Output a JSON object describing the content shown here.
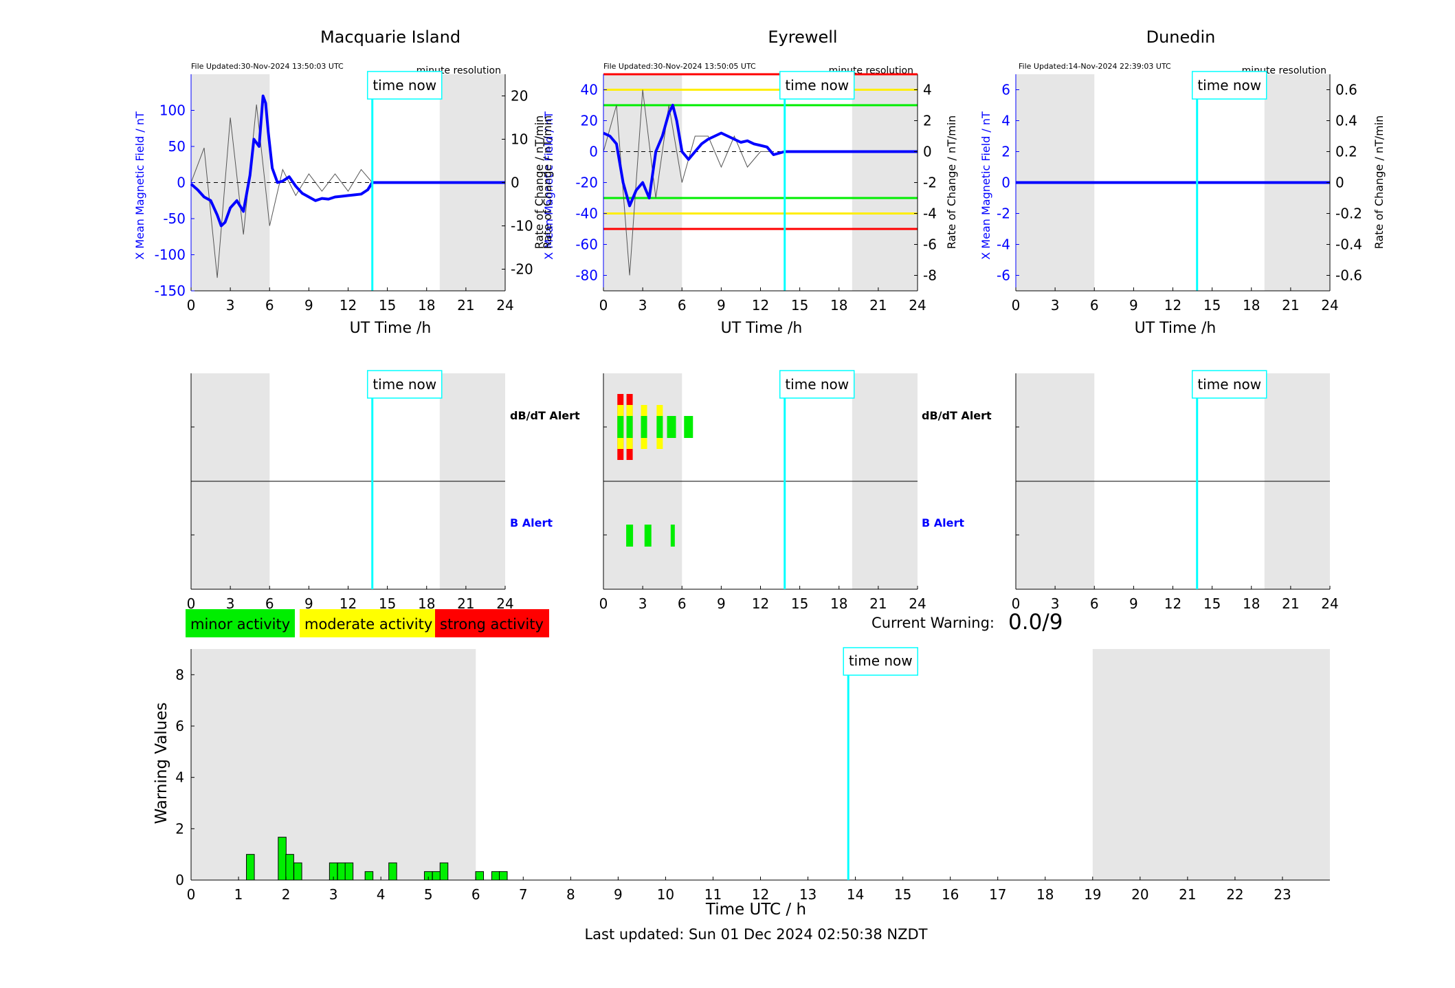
{
  "stations": [
    {
      "name": "Macquarie Island",
      "file_updated": "File Updated:30-Nov-2024 13:50:03 UTC",
      "resolution": "minute resolution",
      "ylabel_left": "X Mean Magnetic Field / nT",
      "ylabel_right": "Rate of Change / nT/min",
      "left_ticks": [
        -150,
        -100,
        -50,
        0,
        50,
        100
      ],
      "right_ticks": [
        -20,
        -10,
        0,
        10,
        20
      ],
      "time_now_label": "time now",
      "xlabel": "UT Time /h"
    },
    {
      "name": "Eyrewell",
      "file_updated": "File Updated:30-Nov-2024 13:50:05 UTC",
      "resolution": "minute resolution",
      "ylabel_left": "X Mean Magnetic Field / nT",
      "ylabel_right": "Rate of Change / nT/min",
      "left_ticks": [
        -80,
        -60,
        -40,
        -20,
        0,
        20,
        40
      ],
      "right_ticks": [
        -8,
        -6,
        -4,
        -2,
        0,
        2,
        4
      ],
      "time_now_label": "time now",
      "xlabel": "UT Time /h"
    },
    {
      "name": "Dunedin",
      "file_updated": "File Updated:14-Nov-2024 22:39:03 UTC",
      "resolution": "minute resolution",
      "ylabel_left": "X Mean Magnetic Field / nT",
      "ylabel_right": "Rate of Change / nT/min",
      "left_ticks": [
        -6,
        -4,
        -2,
        0,
        2,
        4,
        6
      ],
      "right_ticks": [
        -0.6,
        -0.4,
        -0.2,
        0,
        0.2,
        0.4,
        0.6
      ],
      "time_now_label": "time now",
      "xlabel": "UT Time /h"
    }
  ],
  "alert_labels": {
    "dbdt": "dB/dT Alert",
    "b": "B Alert"
  },
  "legend": {
    "minor": "minor activity",
    "moderate": "moderate activity",
    "strong": "strong activity"
  },
  "current_warning": {
    "label": "Current Warning:",
    "value": "0.0/9"
  },
  "warning_chart": {
    "ylabel": "Warning Values",
    "xlabel": "Time UTC / h",
    "time_now_label": "time now"
  },
  "last_updated": "Last updated: Sun 01 Dec 2024 02:50:38 NZDT",
  "colors": {
    "minor": "#00ee00",
    "moderate": "#ffff00",
    "strong": "#ff0000",
    "mean_field": "#0000ff",
    "time_now": "#00ffff",
    "night_shade": "#e6e6e6",
    "rate_of_change": "#555555"
  },
  "chart_data": [
    {
      "type": "line",
      "title": "Macquarie Island",
      "xlabel": "UT Time /h",
      "ylabel": "X Mean Magnetic Field / nT",
      "y2label": "Rate of Change / nT/min",
      "xlim": [
        0,
        24
      ],
      "ylim": [
        -150,
        150
      ],
      "y2lim": [
        -25,
        25
      ],
      "xticks": [
        0,
        3,
        6,
        9,
        12,
        15,
        18,
        21,
        24
      ],
      "time_now": 13.85,
      "shaded_hours": [
        [
          0,
          6
        ],
        [
          19,
          24
        ]
      ],
      "series": [
        {
          "name": "X Mean Magnetic Field",
          "x": [
            0,
            0.5,
            1.0,
            1.5,
            2.0,
            2.3,
            2.6,
            3.0,
            3.5,
            4.0,
            4.5,
            4.8,
            5.2,
            5.5,
            5.7,
            5.9,
            6.2,
            6.6,
            7.0,
            7.5,
            8.0,
            8.5,
            9.0,
            9.5,
            10.0,
            10.5,
            11.0,
            11.5,
            12.0,
            12.5,
            13.0,
            13.5,
            13.85,
            24
          ],
          "y": [
            -2,
            -10,
            -20,
            -25,
            -45,
            -60,
            -55,
            -35,
            -25,
            -40,
            10,
            60,
            50,
            120,
            110,
            70,
            20,
            0,
            2,
            8,
            -5,
            -15,
            -20,
            -25,
            -22,
            -23,
            -20,
            -19,
            -18,
            -17,
            -16,
            -10,
            0,
            0
          ]
        },
        {
          "name": "Rate of Change",
          "x": [
            0,
            1,
            2,
            3,
            4,
            5,
            6,
            7,
            8,
            9,
            10,
            11,
            12,
            13,
            13.85
          ],
          "y": [
            0,
            8,
            -22,
            15,
            -12,
            18,
            -10,
            3,
            -3,
            2,
            -2,
            2,
            -2,
            3,
            0
          ]
        }
      ]
    },
    {
      "type": "line",
      "title": "Eyrewell",
      "xlabel": "UT Time /h",
      "ylabel": "X Mean Magnetic Field / nT",
      "y2label": "Rate of Change / nT/min",
      "xlim": [
        0,
        24
      ],
      "ylim": [
        -90,
        50
      ],
      "y2lim": [
        -9,
        5
      ],
      "xticks": [
        0,
        3,
        6,
        9,
        12,
        15,
        18,
        21,
        24
      ],
      "time_now": 13.85,
      "shaded_hours": [
        [
          0,
          6
        ],
        [
          19,
          24
        ]
      ],
      "thresholds": {
        "minor": [
          30,
          -30
        ],
        "moderate": [
          40,
          -40
        ],
        "strong": [
          50,
          -50
        ]
      },
      "series": [
        {
          "name": "X Mean Magnetic Field",
          "x": [
            0,
            0.5,
            1.0,
            1.5,
            2.0,
            2.5,
            3.0,
            3.5,
            4.0,
            4.5,
            5.0,
            5.3,
            5.6,
            6.0,
            6.5,
            7.0,
            7.5,
            8.0,
            8.5,
            9.0,
            9.5,
            10.0,
            10.5,
            11.0,
            11.5,
            12.0,
            12.5,
            13.0,
            13.85,
            24
          ],
          "y": [
            12,
            10,
            5,
            -20,
            -35,
            -25,
            -20,
            -30,
            0,
            10,
            25,
            30,
            20,
            0,
            -5,
            0,
            5,
            8,
            10,
            12,
            10,
            8,
            6,
            7,
            5,
            4,
            3,
            -2,
            0,
            0
          ]
        },
        {
          "name": "Rate of Change",
          "x": [
            0,
            1,
            2,
            3,
            4,
            5,
            6,
            7,
            8,
            9,
            10,
            11,
            12,
            13
          ],
          "y": [
            0,
            3,
            -8,
            4,
            -3,
            3,
            -2,
            1,
            1,
            -1,
            1,
            -1,
            0,
            0
          ]
        }
      ]
    },
    {
      "type": "line",
      "title": "Dunedin",
      "xlabel": "UT Time /h",
      "ylabel": "X Mean Magnetic Field / nT",
      "y2label": "Rate of Change / nT/min",
      "xlim": [
        0,
        24
      ],
      "ylim": [
        -7,
        7
      ],
      "y2lim": [
        -0.7,
        0.7
      ],
      "xticks": [
        0,
        3,
        6,
        9,
        12,
        15,
        18,
        21,
        24
      ],
      "time_now": 13.85,
      "shaded_hours": [
        [
          0,
          6
        ],
        [
          19,
          24
        ]
      ],
      "series": [
        {
          "name": "X Mean Magnetic Field",
          "x": [
            0,
            24
          ],
          "y": [
            0,
            0
          ]
        }
      ]
    },
    {
      "type": "bar",
      "title": "dB/dT Alert / B Alert",
      "xlim": [
        0,
        24
      ],
      "xticks": [
        0,
        3,
        6,
        9,
        12,
        15,
        18,
        21,
        24
      ],
      "panels": [
        "Macquarie Island",
        "Eyrewell",
        "Dunedin"
      ],
      "eyrewell_dbdt": [
        {
          "hour": 1.3,
          "level": "strong"
        },
        {
          "hour": 2.0,
          "level": "strong"
        },
        {
          "hour": 3.1,
          "level": "moderate"
        },
        {
          "hour": 4.3,
          "level": "moderate"
        },
        {
          "hour": 5.2,
          "level": "minor"
        },
        {
          "hour": 6.5,
          "level": "minor"
        }
      ],
      "eyrewell_b": [
        {
          "hour": 2.0,
          "level": "minor"
        },
        {
          "hour": 3.4,
          "level": "minor"
        },
        {
          "hour": 5.4,
          "level": "minor"
        }
      ]
    },
    {
      "type": "bar",
      "title": "",
      "xlabel": "Time UTC / h",
      "ylabel": "Warning Values",
      "xlim": [
        0,
        24
      ],
      "ylim": [
        0,
        9
      ],
      "xticks": [
        0,
        1,
        2,
        3,
        4,
        5,
        6,
        7,
        8,
        9,
        10,
        11,
        12,
        13,
        14,
        15,
        16,
        17,
        18,
        19,
        20,
        21,
        22,
        23
      ],
      "yticks": [
        0,
        2,
        4,
        6,
        8
      ],
      "time_now": 13.85,
      "shaded_hours": [
        [
          0,
          6
        ],
        [
          19,
          24
        ]
      ],
      "x": [
        1.25,
        1.92,
        2.08,
        2.25,
        3.0,
        3.17,
        3.33,
        3.75,
        4.25,
        5.0,
        5.17,
        5.33,
        6.08,
        6.42,
        6.58
      ],
      "values": [
        1.0,
        1.67,
        1.0,
        0.67,
        0.67,
        0.67,
        0.67,
        0.33,
        0.67,
        0.33,
        0.33,
        0.67,
        0.33,
        0.33,
        0.33
      ]
    }
  ]
}
